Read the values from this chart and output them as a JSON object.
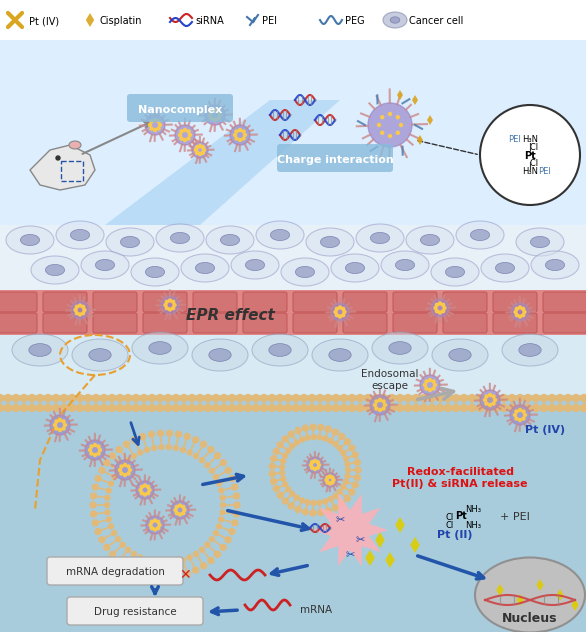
{
  "background_color": "#ffffff",
  "top_bg": "#e8f4f8",
  "legend_items": [
    {
      "label": "Pt (IV)",
      "color": "#DAA520"
    },
    {
      "label": "Cisplatin",
      "color": "#DAA520"
    },
    {
      "label": "siRNA",
      "color": "#cc0000"
    },
    {
      "label": "PEI",
      "color": "#4477aa"
    },
    {
      "label": "PEG",
      "color": "#4477aa"
    },
    {
      "label": "Cancer cell",
      "color": "#888888"
    }
  ],
  "nanocomplex_label": "Nanocomplex",
  "charge_label": "Charge interaction",
  "epr_label": "EPR effect",
  "endosomal_label": "Endosomal\nescape",
  "redox_label": "Redox-facilitated\nPt(II) & siRNA release",
  "pt4_label": "Pt (IV)",
  "pt2_label": "Pt (II)",
  "pei_label": "PEI",
  "mrna_deg_label": "mRNA degradation",
  "drug_res_label": "Drug resistance",
  "mrna_label": "mRNA",
  "nucleus_label": "Nucleus",
  "cell_bg": "#d0e8f0",
  "blood_vessel_color": "#e88080",
  "lipid_color": "#e8b870",
  "nucleus_color": "#c8c8c8",
  "nucleus_bg": "#b0b0b0",
  "release_star_color": "#ffb0b8",
  "tissue_color": "#f0f4ff"
}
